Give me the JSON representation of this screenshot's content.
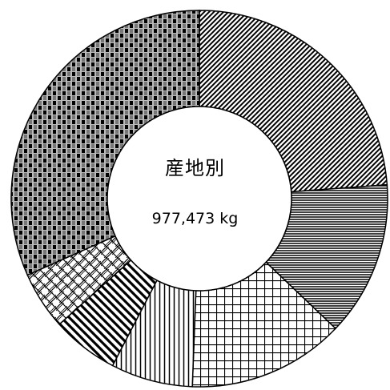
{
  "chart_data": {
    "type": "pie",
    "center_label": "産地別",
    "total_label": "977,473 kg",
    "total": 977473,
    "unit": "kg",
    "slices": [
      {
        "value": 0.2383,
        "pattern": "diagonal-fine"
      },
      {
        "value": 0.133,
        "pattern": "horizontal-lines"
      },
      {
        "value": 0.1347,
        "pattern": "grid"
      },
      {
        "value": 0.0703,
        "pattern": "vertical-lines"
      },
      {
        "value": 0.0573,
        "pattern": "diagonal-bold"
      },
      {
        "value": 0.0498,
        "pattern": "lattice"
      },
      {
        "value": 0.3166,
        "pattern": "checker"
      }
    ]
  }
}
